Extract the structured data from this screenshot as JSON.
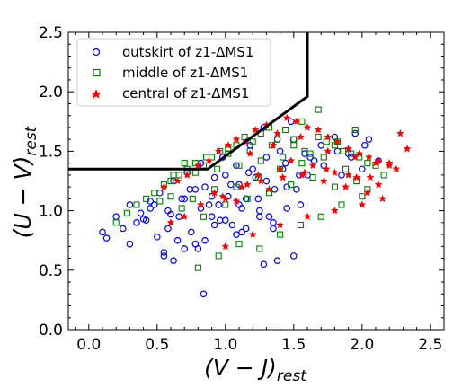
{
  "chart_data": {
    "type": "scatter",
    "xlabel_main": "(V − J)",
    "xlabel_sub": "rest",
    "ylabel_main": "(U − V)",
    "ylabel_sub": "rest",
    "xlim": [
      -0.15,
      2.6
    ],
    "ylim": [
      0.0,
      2.5
    ],
    "xticks": [
      0.0,
      0.5,
      1.0,
      1.5,
      2.0,
      2.5
    ],
    "xtick_labels": [
      "0.0",
      "0.5",
      "1.0",
      "1.5",
      "2.0",
      "2.5"
    ],
    "yticks": [
      0.0,
      0.5,
      1.0,
      1.5,
      2.0,
      2.5
    ],
    "ytick_labels": [
      "0.0",
      "0.5",
      "1.0",
      "1.5",
      "2.0",
      "2.5"
    ],
    "grid": false,
    "legend_position": "top-left",
    "boundary_line": {
      "x": [
        -0.15,
        0.87,
        1.6,
        1.6
      ],
      "y": [
        1.35,
        1.35,
        1.96,
        2.5
      ]
    },
    "series": [
      {
        "name": "outskirt of z1-ΔMS1",
        "marker": "circle",
        "color": "#0000ff",
        "x": [
          0.1,
          0.13,
          0.2,
          0.25,
          0.3,
          0.35,
          0.4,
          0.45,
          0.5,
          0.55,
          0.6,
          0.65,
          0.7,
          0.75,
          0.8,
          0.85,
          0.9,
          0.95,
          1.0,
          1.05,
          1.1,
          1.15,
          1.2,
          1.25,
          1.3,
          1.35,
          1.4,
          1.45,
          1.5,
          1.55,
          1.6,
          1.65,
          1.7,
          1.8,
          1.85,
          1.9,
          1.95,
          2.0,
          2.05,
          0.3,
          0.38,
          0.45,
          0.52,
          0.58,
          0.62,
          0.68,
          0.72,
          0.78,
          0.82,
          0.88,
          0.92,
          0.98,
          1.02,
          1.08,
          1.12,
          1.18,
          1.22,
          1.28,
          1.32,
          1.38,
          1.42,
          1.48,
          1.52,
          1.58,
          0.55,
          0.62,
          0.7,
          0.78,
          0.85,
          0.92,
          1.0,
          1.08,
          1.15,
          1.25,
          1.35,
          1.45,
          0.84,
          1.12,
          1.28,
          1.38,
          1.5,
          0.42,
          0.48,
          0.58,
          0.66,
          0.74,
          0.82,
          0.9,
          0.96,
          1.04,
          1.1,
          1.17,
          1.24,
          1.3,
          1.36,
          1.44,
          1.54,
          1.62,
          1.72,
          1.82,
          1.92,
          2.02,
          2.12
        ],
        "y": [
          0.82,
          0.77,
          0.95,
          0.85,
          0.72,
          0.9,
          0.93,
          1.02,
          0.78,
          0.65,
          0.97,
          0.75,
          1.1,
          0.82,
          0.68,
          1.2,
          0.95,
          1.05,
          1.3,
          0.88,
          1.22,
          1.1,
          1.35,
          1.0,
          1.45,
          0.9,
          1.5,
          1.2,
          1.6,
          1.05,
          1.3,
          1.42,
          1.55,
          1.62,
          1.3,
          1.48,
          1.65,
          1.35,
          1.6,
          1.05,
          0.98,
          1.08,
          1.15,
          1.0,
          1.25,
          1.1,
          1.32,
          1.18,
          1.4,
          1.05,
          1.28,
          1.45,
          1.12,
          1.38,
          1.02,
          1.55,
          1.28,
          1.7,
          0.95,
          1.6,
          1.35,
          1.75,
          1.18,
          1.48,
          0.62,
          0.58,
          0.68,
          0.72,
          0.75,
          0.88,
          0.92,
          0.8,
          0.85,
          0.95,
          0.85,
          1.02,
          0.3,
          0.82,
          0.55,
          0.58,
          0.62,
          0.92,
          1.05,
          0.85,
          0.95,
          1.18,
          1.02,
          1.12,
          0.92,
          1.22,
          1.05,
          1.32,
          1.1,
          1.25,
          1.18,
          1.4,
          1.3,
          1.45,
          1.38,
          1.5,
          1.45,
          1.55,
          1.42
        ]
      },
      {
        "name": "middle of z1-ΔMS1",
        "marker": "square",
        "color": "#008000",
        "x": [
          0.2,
          0.28,
          0.35,
          0.42,
          0.48,
          0.55,
          0.6,
          0.66,
          0.72,
          0.78,
          0.84,
          0.9,
          0.96,
          1.02,
          1.08,
          1.14,
          1.2,
          1.26,
          1.32,
          1.38,
          1.44,
          1.5,
          1.56,
          1.62,
          1.68,
          1.74,
          1.8,
          1.86,
          1.92,
          1.98,
          2.04,
          2.1,
          2.16,
          0.52,
          0.6,
          0.68,
          0.76,
          0.84,
          0.92,
          1.0,
          1.08,
          1.16,
          1.24,
          1.32,
          1.4,
          1.48,
          1.56,
          1.64,
          1.72,
          1.8,
          1.88,
          1.96,
          2.04,
          0.8,
          0.95,
          1.1,
          1.25,
          1.4,
          1.55,
          1.7,
          1.85,
          2.0,
          1.68,
          1.95,
          1.82,
          0.62,
          0.7,
          0.78,
          0.86,
          0.94,
          1.02,
          1.1,
          1.18,
          1.26,
          1.34,
          1.42,
          1.5,
          1.58
        ],
        "y": [
          0.9,
          0.98,
          1.05,
          1.1,
          1.15,
          1.22,
          1.25,
          1.3,
          1.35,
          1.4,
          1.38,
          1.45,
          1.5,
          1.52,
          1.55,
          1.62,
          1.58,
          1.65,
          1.7,
          1.6,
          1.68,
          1.55,
          1.75,
          1.48,
          1.62,
          1.58,
          1.55,
          1.5,
          1.48,
          1.45,
          1.4,
          1.38,
          1.3,
          1.08,
          1.12,
          1.02,
          1.1,
          0.95,
          1.18,
          1.05,
          1.2,
          1.1,
          1.28,
          1.15,
          1.35,
          1.22,
          1.4,
          1.28,
          1.45,
          1.2,
          1.35,
          1.25,
          1.18,
          0.52,
          0.62,
          0.72,
          0.68,
          0.8,
          0.88,
          0.95,
          1.05,
          1.12,
          1.85,
          1.68,
          1.58,
          1.3,
          1.4,
          1.32,
          1.45,
          1.35,
          1.48,
          1.38,
          1.5,
          1.42,
          1.55,
          1.45,
          1.6,
          1.5
        ]
      },
      {
        "name": "central of z1-ΔMS1",
        "marker": "star",
        "color": "#ff0000",
        "x": [
          0.55,
          0.65,
          0.72,
          0.8,
          0.88,
          0.95,
          1.02,
          1.08,
          1.15,
          1.22,
          1.3,
          1.38,
          1.45,
          1.52,
          1.6,
          1.68,
          1.75,
          1.82,
          1.9,
          1.98,
          2.05,
          2.12,
          2.2,
          2.28,
          2.33,
          0.92,
          1.0,
          1.08,
          1.16,
          1.24,
          1.32,
          1.4,
          1.48,
          1.56,
          1.64,
          1.72,
          1.8,
          1.88,
          1.96,
          2.04,
          2.12,
          2.2,
          0.6,
          0.7,
          0.82,
          0.98,
          1.12,
          1.26,
          1.42,
          1.58,
          1.74,
          1.9,
          2.06,
          1.0,
          1.2,
          1.4,
          1.6,
          1.8,
          2.0,
          2.15,
          1.18,
          1.35,
          1.55,
          1.75,
          1.95,
          2.1,
          2.25
        ],
        "y": [
          1.2,
          1.25,
          1.3,
          1.38,
          1.42,
          1.5,
          1.55,
          1.6,
          1.58,
          1.68,
          1.72,
          1.65,
          1.78,
          1.75,
          1.7,
          1.68,
          1.62,
          1.58,
          1.52,
          1.48,
          1.45,
          1.42,
          1.4,
          1.65,
          1.52,
          1.15,
          1.1,
          1.08,
          1.22,
          1.3,
          1.18,
          1.35,
          1.42,
          1.3,
          1.38,
          1.25,
          1.32,
          1.2,
          1.28,
          1.15,
          1.22,
          1.38,
          0.9,
          0.95,
          1.05,
          1.12,
          1.2,
          1.25,
          1.28,
          1.32,
          1.35,
          1.3,
          1.28,
          0.7,
          0.8,
          0.88,
          0.95,
          1.0,
          1.05,
          1.1,
          1.48,
          1.55,
          1.62,
          1.5,
          1.45,
          1.4,
          1.35
        ]
      }
    ]
  }
}
